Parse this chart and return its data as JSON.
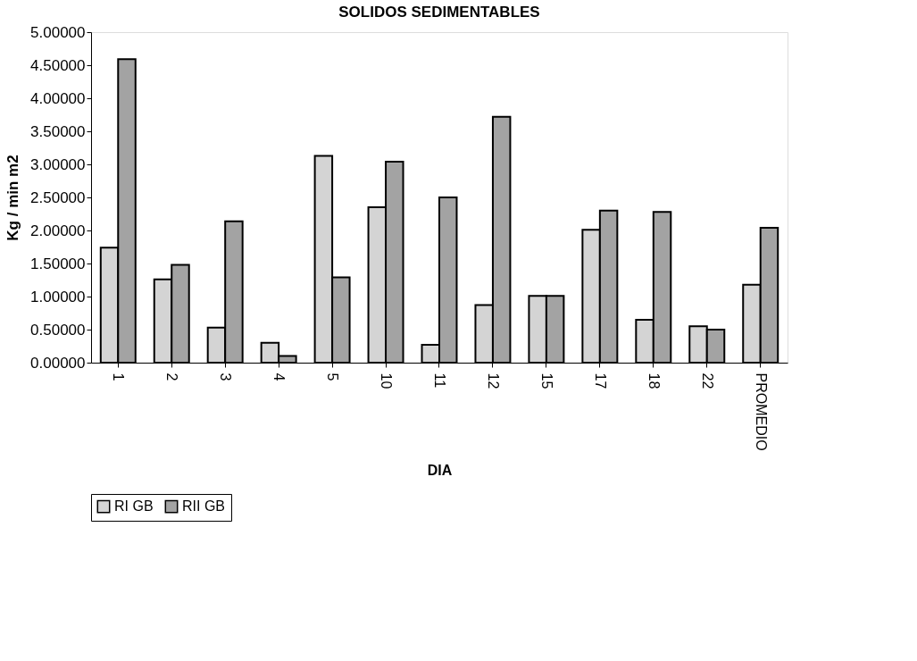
{
  "chart_data": {
    "type": "bar",
    "title": "SOLIDOS SEDIMENTABLES",
    "xlabel": "DIA",
    "ylabel": "Kg / min m2",
    "categories": [
      "1",
      "2",
      "3",
      "4",
      "5",
      "10",
      "11",
      "12",
      "15",
      "17",
      "18",
      "22",
      "PROMEDIO"
    ],
    "series": [
      {
        "name": "RI GB",
        "color": "#d4d4d4",
        "values": [
          1.74,
          1.26,
          0.53,
          0.3,
          3.13,
          2.35,
          0.27,
          0.87,
          1.01,
          2.01,
          0.65,
          0.55,
          1.18
        ]
      },
      {
        "name": "RII GB",
        "color": "#a3a3a3",
        "values": [
          4.59,
          1.48,
          2.14,
          0.1,
          1.29,
          3.04,
          2.5,
          3.72,
          1.01,
          2.3,
          2.28,
          0.5,
          2.04
        ]
      }
    ],
    "ylim": [
      0,
      5
    ],
    "yticks": [
      {
        "value": 0,
        "label": "0.00000"
      },
      {
        "value": 0.5,
        "label": "0.50000"
      },
      {
        "value": 1,
        "label": "1.00000"
      },
      {
        "value": 1.5,
        "label": "1.50000"
      },
      {
        "value": 2,
        "label": "2.00000"
      },
      {
        "value": 2.5,
        "label": "2.50000"
      },
      {
        "value": 3,
        "label": "3.00000"
      },
      {
        "value": 3.5,
        "label": "3.50000"
      },
      {
        "value": 4,
        "label": "4.00000"
      },
      {
        "value": 4.5,
        "label": "4.50000"
      },
      {
        "value": 5,
        "label": "5.00000"
      }
    ],
    "grid": false,
    "legend": "bottom"
  }
}
